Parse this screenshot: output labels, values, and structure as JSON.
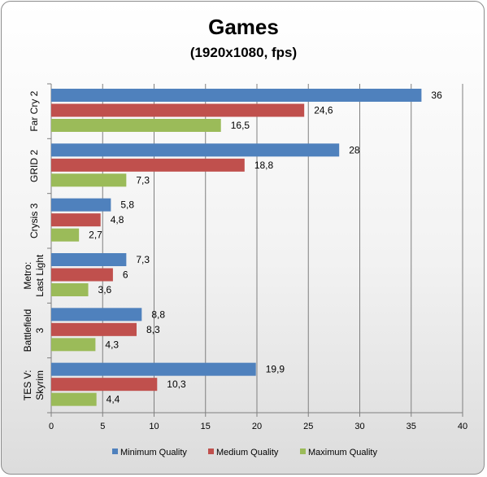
{
  "chart_data": {
    "type": "bar",
    "orientation": "horizontal",
    "title": "Games",
    "subtitle": "(1920x1080, fps)",
    "categories": [
      [
        "Far Cry 2"
      ],
      [
        "GRID 2"
      ],
      [
        "Crysis 3"
      ],
      [
        "Metro:",
        "Last Light"
      ],
      [
        "Battlefield",
        "3"
      ],
      [
        "TES V:",
        "Skyrim"
      ]
    ],
    "series": [
      {
        "name": "Minimum Quality",
        "color": "#4f81bd",
        "values": [
          36,
          28,
          5.8,
          7.3,
          8.8,
          19.9
        ],
        "labels": [
          "36",
          "28",
          "5,8",
          "7,3",
          "8,8",
          "19,9"
        ]
      },
      {
        "name": "Medium Quality",
        "color": "#c0504d",
        "values": [
          24.6,
          18.8,
          4.8,
          6,
          8.3,
          10.3
        ],
        "labels": [
          "24,6",
          "18,8",
          "4,8",
          "6",
          "8,3",
          "10,3"
        ]
      },
      {
        "name": "Maximum Quality",
        "color": "#9bbb59",
        "values": [
          16.5,
          7.3,
          2.7,
          3.6,
          4.3,
          4.4
        ],
        "labels": [
          "16,5",
          "7,3",
          "2,7",
          "3,6",
          "4,3",
          "4,4"
        ]
      }
    ],
    "xlim": [
      0,
      40
    ],
    "xticks": [
      0,
      5,
      10,
      15,
      20,
      25,
      30,
      35,
      40
    ],
    "grid": true,
    "legend_position": "bottom"
  }
}
